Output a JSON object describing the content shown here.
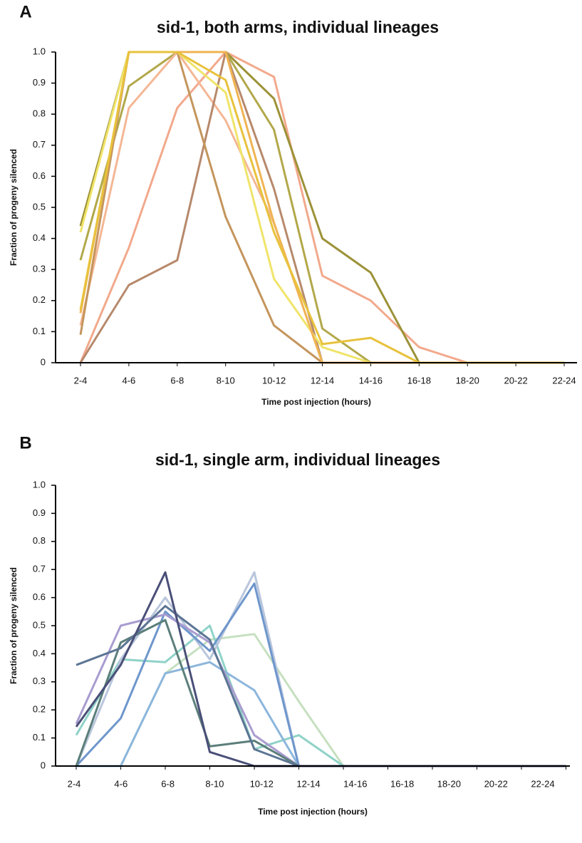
{
  "chart_data": [
    {
      "type": "line",
      "panel_label": "A",
      "title": "sid-1, both arms, individual lineages",
      "xlabel": "Time post injection (hours)",
      "ylabel": "Fraction of progeny silenced",
      "categories": [
        "2-4",
        "4-6",
        "6-8",
        "8-10",
        "10-12",
        "12-14",
        "14-16",
        "16-18",
        "18-20",
        "20-22",
        "22-24"
      ],
      "ylim": [
        0,
        1
      ],
      "yticks": [
        0,
        0.1,
        0.2,
        0.3,
        0.4,
        0.5,
        0.6,
        0.7,
        0.8,
        0.9,
        {
          "value": 1,
          "label": "1.0"
        }
      ],
      "series": [
        {
          "color": "#f2a98c",
          "values": [
            0,
            0.37,
            0.82,
            1,
            0.92,
            0.28,
            0.2,
            0.05,
            0,
            0,
            0
          ]
        },
        {
          "color": "#9c9238",
          "values": [
            0.44,
            1,
            1,
            1,
            0.85,
            0.4,
            0.29,
            0,
            0,
            0,
            0
          ]
        },
        {
          "color": "#b2a84a",
          "values": [
            0.33,
            0.89,
            1,
            1,
            0.75,
            0.11,
            0,
            0,
            0,
            0,
            0
          ]
        },
        {
          "color": "#f4b795",
          "values": [
            0.12,
            0.82,
            1,
            0.78,
            0.45,
            0,
            0,
            0,
            0,
            0,
            0
          ]
        },
        {
          "color": "#b7896b",
          "values": [
            0,
            0.25,
            0.33,
            1,
            0.56,
            0,
            0,
            0,
            0,
            0,
            0
          ]
        },
        {
          "color": "#c4955c",
          "values": [
            0.09,
            1,
            1,
            0.47,
            0.12,
            0,
            0,
            0,
            0,
            0,
            0
          ]
        },
        {
          "color": "#f0e46a",
          "values": [
            0.42,
            1,
            1,
            0.87,
            0.27,
            0.05,
            0,
            0,
            0,
            0,
            0
          ]
        },
        {
          "color": "#f0b453",
          "values": [
            0.16,
            1,
            1,
            1,
            0.45,
            0,
            0,
            0,
            0,
            0,
            0
          ]
        },
        {
          "color": "#e8c23c",
          "values": [
            0.17,
            1,
            1,
            0.91,
            0.42,
            0.06,
            0.08,
            0,
            0,
            0,
            0
          ]
        }
      ]
    },
    {
      "type": "line",
      "panel_label": "B",
      "title": "sid-1, single arm, individual lineages",
      "xlabel": "Time post injection (hours)",
      "ylabel": "Fraction of progeny silenced",
      "categories": [
        "2-4",
        "4-6",
        "6-8",
        "8-10",
        "10-12",
        "12-14",
        "14-16",
        "16-18",
        "18-20",
        "20-22",
        "22-24",
        null
      ],
      "ylim": [
        0,
        1
      ],
      "yticks": [
        0,
        0.1,
        0.2,
        0.3,
        0.4,
        0.5,
        0.6,
        0.7,
        0.8,
        0.9,
        {
          "value": 1,
          "label": "1.0"
        }
      ],
      "series": [
        {
          "color": "#c6e0c0",
          "values": [
            0,
            0,
            0.33,
            0.45,
            0.47,
            0.23,
            0,
            0,
            0,
            0,
            0,
            0
          ]
        },
        {
          "color": "#8fd2c8",
          "values": [
            0.11,
            0.38,
            0.37,
            0.5,
            0.06,
            0.11,
            0,
            0,
            0,
            0,
            0,
            0
          ]
        },
        {
          "color": "#8cb6dc",
          "values": [
            0,
            0,
            0.33,
            0.37,
            0.27,
            0,
            0,
            0,
            0,
            0,
            0,
            0
          ]
        },
        {
          "color": "#b9c6dc",
          "values": [
            0,
            0.38,
            0.6,
            0.38,
            0.69,
            0,
            0,
            0,
            0,
            0,
            0,
            0
          ]
        },
        {
          "color": "#6e96cc",
          "values": [
            0,
            0.17,
            0.55,
            0.41,
            0.65,
            0,
            0,
            0,
            0,
            0,
            0,
            0
          ]
        },
        {
          "color": "#a99cd0",
          "values": [
            0.15,
            0.5,
            0.54,
            0.44,
            0.11,
            0,
            0,
            0,
            0,
            0,
            0,
            0
          ]
        },
        {
          "color": "#5c7f7a",
          "values": [
            0,
            0.44,
            0.52,
            0.07,
            0.09,
            0,
            0,
            0,
            0,
            0,
            0,
            0
          ]
        },
        {
          "color": "#5c7594",
          "values": [
            0.36,
            0.42,
            0.57,
            0.45,
            0.06,
            0,
            0,
            0,
            0,
            0,
            0,
            0
          ]
        },
        {
          "color": "#4a4f78",
          "values": [
            0.14,
            0.36,
            0.69,
            0.05,
            0,
            0,
            0,
            0,
            0,
            0,
            0,
            0
          ]
        }
      ]
    }
  ]
}
